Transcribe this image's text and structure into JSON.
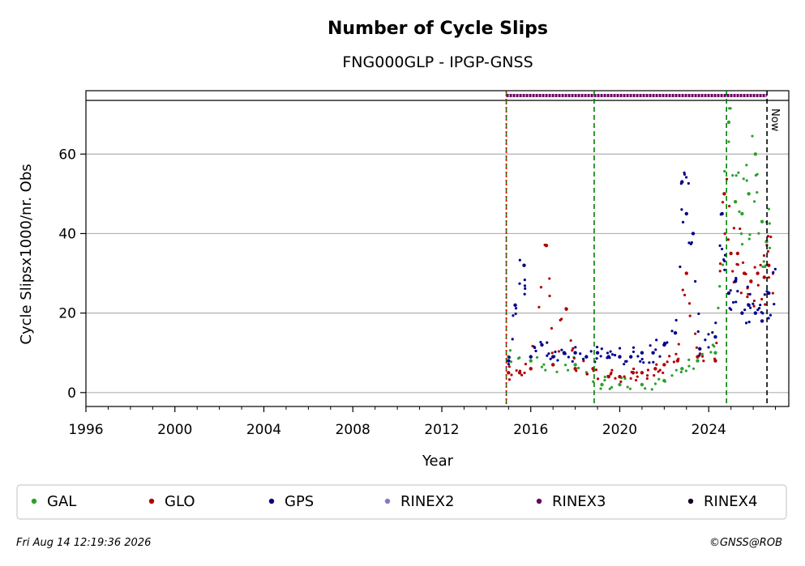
{
  "chart_data": {
    "type": "scatter",
    "title": "Number of Cycle Slips",
    "subtitle": "FNG000GLP - IPGP-GNSS",
    "xlabel": "Year",
    "ylabel": "Cycle Slipsx1000/nr. Obs",
    "xlim": [
      1996,
      2027.6
    ],
    "ylim": [
      -3.5,
      73.5
    ],
    "x_ticks": [
      1996,
      2000,
      2004,
      2008,
      2012,
      2016,
      2020,
      2024
    ],
    "x_tick_labels": [
      "1996",
      "2000",
      "2004",
      "2008",
      "2012",
      "2016",
      "2020",
      "2024"
    ],
    "y_ticks": [
      0,
      20,
      40,
      60
    ],
    "y_tick_labels": [
      "0",
      "20",
      "40",
      "60"
    ],
    "grid": "y",
    "legend_position": "bottom",
    "series": [
      {
        "name": "GAL",
        "color": "#2ca02c",
        "x": [
          2015.0,
          2016.0,
          2017.0,
          2018.0,
          2019.2,
          2020.0,
          2021.0,
          2022.0,
          2022.8,
          2023.5,
          2024.3,
          2024.9,
          2025.2,
          2025.5,
          2025.8,
          2026.1,
          2026.4,
          2026.6
        ],
        "y": [
          9,
          8,
          7,
          7,
          2,
          2,
          2,
          3,
          6,
          8,
          10,
          68,
          48,
          45,
          50,
          60,
          43,
          38
        ]
      },
      {
        "name": "GLO",
        "color": "#b20000",
        "x": [
          2015.0,
          2015.5,
          2016.0,
          2016.7,
          2017.0,
          2017.6,
          2018.0,
          2018.8,
          2019.5,
          2020.0,
          2020.6,
          2021.0,
          2021.6,
          2022.0,
          2022.6,
          2023.0,
          2023.5,
          2024.3,
          2024.7,
          2025.0,
          2025.3,
          2025.6,
          2025.9,
          2026.2,
          2026.5,
          2026.7
        ],
        "y": [
          5,
          5,
          6,
          37,
          7,
          21,
          6,
          6,
          4,
          4,
          5,
          5,
          6,
          7,
          8,
          30,
          9,
          8,
          50,
          35,
          35,
          30,
          28,
          30,
          29,
          32
        ]
      },
      {
        "name": "GPS",
        "color": "#00008b",
        "x": [
          2015.0,
          2015.3,
          2015.7,
          2016.0,
          2016.5,
          2017.0,
          2017.5,
          2018.0,
          2018.5,
          2019.0,
          2019.5,
          2020.0,
          2020.5,
          2021.0,
          2021.5,
          2022.0,
          2022.5,
          2022.8,
          2023.0,
          2023.3,
          2023.6,
          2024.3,
          2024.6,
          2024.9,
          2025.2,
          2025.5,
          2025.8,
          2026.1,
          2026.4,
          2026.7
        ],
        "y": [
          8,
          22,
          32,
          9,
          12,
          9,
          10,
          10,
          9,
          10,
          9,
          9,
          9,
          10,
          10,
          12,
          15,
          53,
          45,
          40,
          11,
          14,
          45,
          25,
          28,
          20,
          22,
          20,
          18,
          25
        ]
      },
      {
        "name": "RINEX2",
        "color": "#8878c8",
        "x": [],
        "y": []
      },
      {
        "name": "RINEX3",
        "color": "#6a0066",
        "x_range": [
          2014.9,
          2026.6
        ],
        "level": 75
      },
      {
        "name": "RINEX4",
        "color": "#1a0020",
        "x": [],
        "y": []
      }
    ],
    "vertical_lines": [
      {
        "x": 2014.9,
        "style": "dashed",
        "color": "#008000"
      },
      {
        "x": 2014.9,
        "style": "dotted",
        "color": "#d00000"
      },
      {
        "x": 2018.85,
        "style": "dashed",
        "color": "#008000"
      },
      {
        "x": 2024.8,
        "style": "dashed",
        "color": "#008000"
      },
      {
        "x": 2026.62,
        "style": "dashed",
        "color": "#000000",
        "label": "Now"
      }
    ]
  },
  "footer": {
    "timestamp": "Fri Aug 14 12:19:36 2026",
    "credit": "©GNSS@ROB"
  }
}
